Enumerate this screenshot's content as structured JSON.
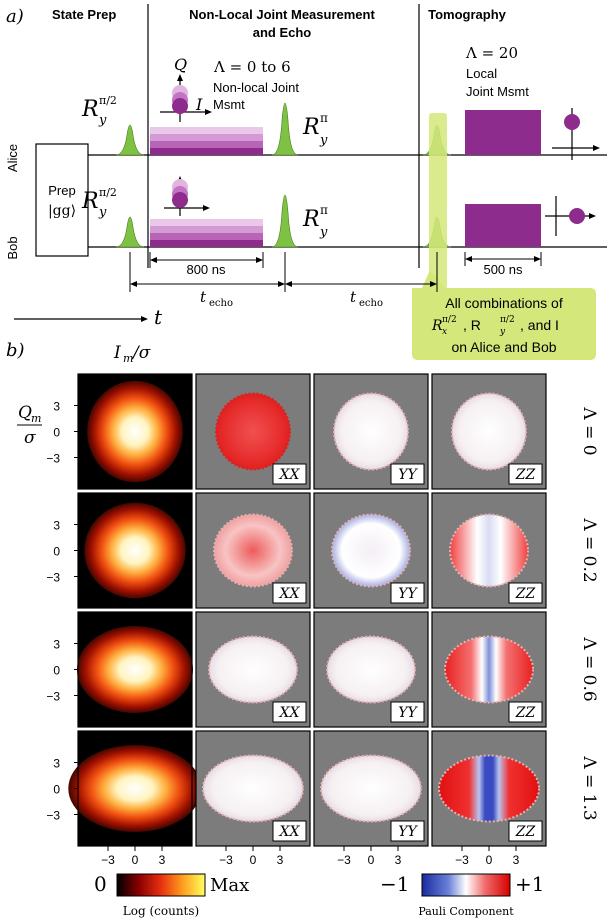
{
  "panel_a": {
    "label": "a)",
    "sections": {
      "state_prep": "State Prep",
      "joint_line1": "Non-Local Joint Measurement",
      "joint_line2": "and Echo",
      "tomography": "Tomography"
    },
    "qubits": {
      "alice": "Alice",
      "bob": "Bob"
    },
    "prep_label": "Prep",
    "prep_state": "|gg⟩",
    "gate_half": "R",
    "gate_half_sup": "π/2",
    "gate_half_sub": "y",
    "gate_pi": "R",
    "gate_pi_sup": "π",
    "gate_pi_sub": "y",
    "axis_q": "Q",
    "axis_i": "I",
    "lambda_range": "Λ = 0 to 6",
    "nonlocal_line1": "Non-local Joint",
    "nonlocal_line2": "Msmt",
    "lambda_tomo": "Λ = 20",
    "local_line1": "Local",
    "local_line2": "Joint Msmt",
    "dur_800": "800 ns",
    "dur_500": "500 ns",
    "t_echo": "t",
    "t_echo_sub": "echo",
    "time_axis": "t",
    "callout_line1": "All combinations of",
    "callout_line2a": "R",
    "callout_line2b": ", R",
    "callout_line2c": ", and I",
    "callout_line3": "on Alice and Bob",
    "callout_sub_x": "x",
    "callout_sub_y": "y",
    "callout_sup": "π/2",
    "colors": {
      "pulse": "#7dc242",
      "msmt": "#8e2c8e",
      "callout": "#d4e77a"
    }
  },
  "panel_b": {
    "label": "b)",
    "x_axis_label": "I",
    "x_axis_sub": "m",
    "x_axis_den": "/σ",
    "y_axis_num": "Q",
    "y_axis_sub": "m",
    "y_axis_den": "σ",
    "y_ticks": [
      "3",
      "0",
      "−3"
    ],
    "x_ticks": [
      "−3",
      "0",
      "3"
    ],
    "column_tags": [
      "XX",
      "YY",
      "ZZ"
    ],
    "rows": [
      {
        "lambda": "Λ = 0",
        "strength": 0.0
      },
      {
        "lambda": "Λ = 0.2",
        "strength": 0.2
      },
      {
        "lambda": "Λ = 0.6",
        "strength": 0.6
      },
      {
        "lambda": "Λ = 1.3",
        "strength": 1.3
      }
    ],
    "colorbar_log": {
      "min": "0",
      "max": "Max",
      "label": "Log (counts)"
    },
    "colorbar_pauli": {
      "min": "−1",
      "max": "+1",
      "label": "Pauli Component"
    }
  }
}
